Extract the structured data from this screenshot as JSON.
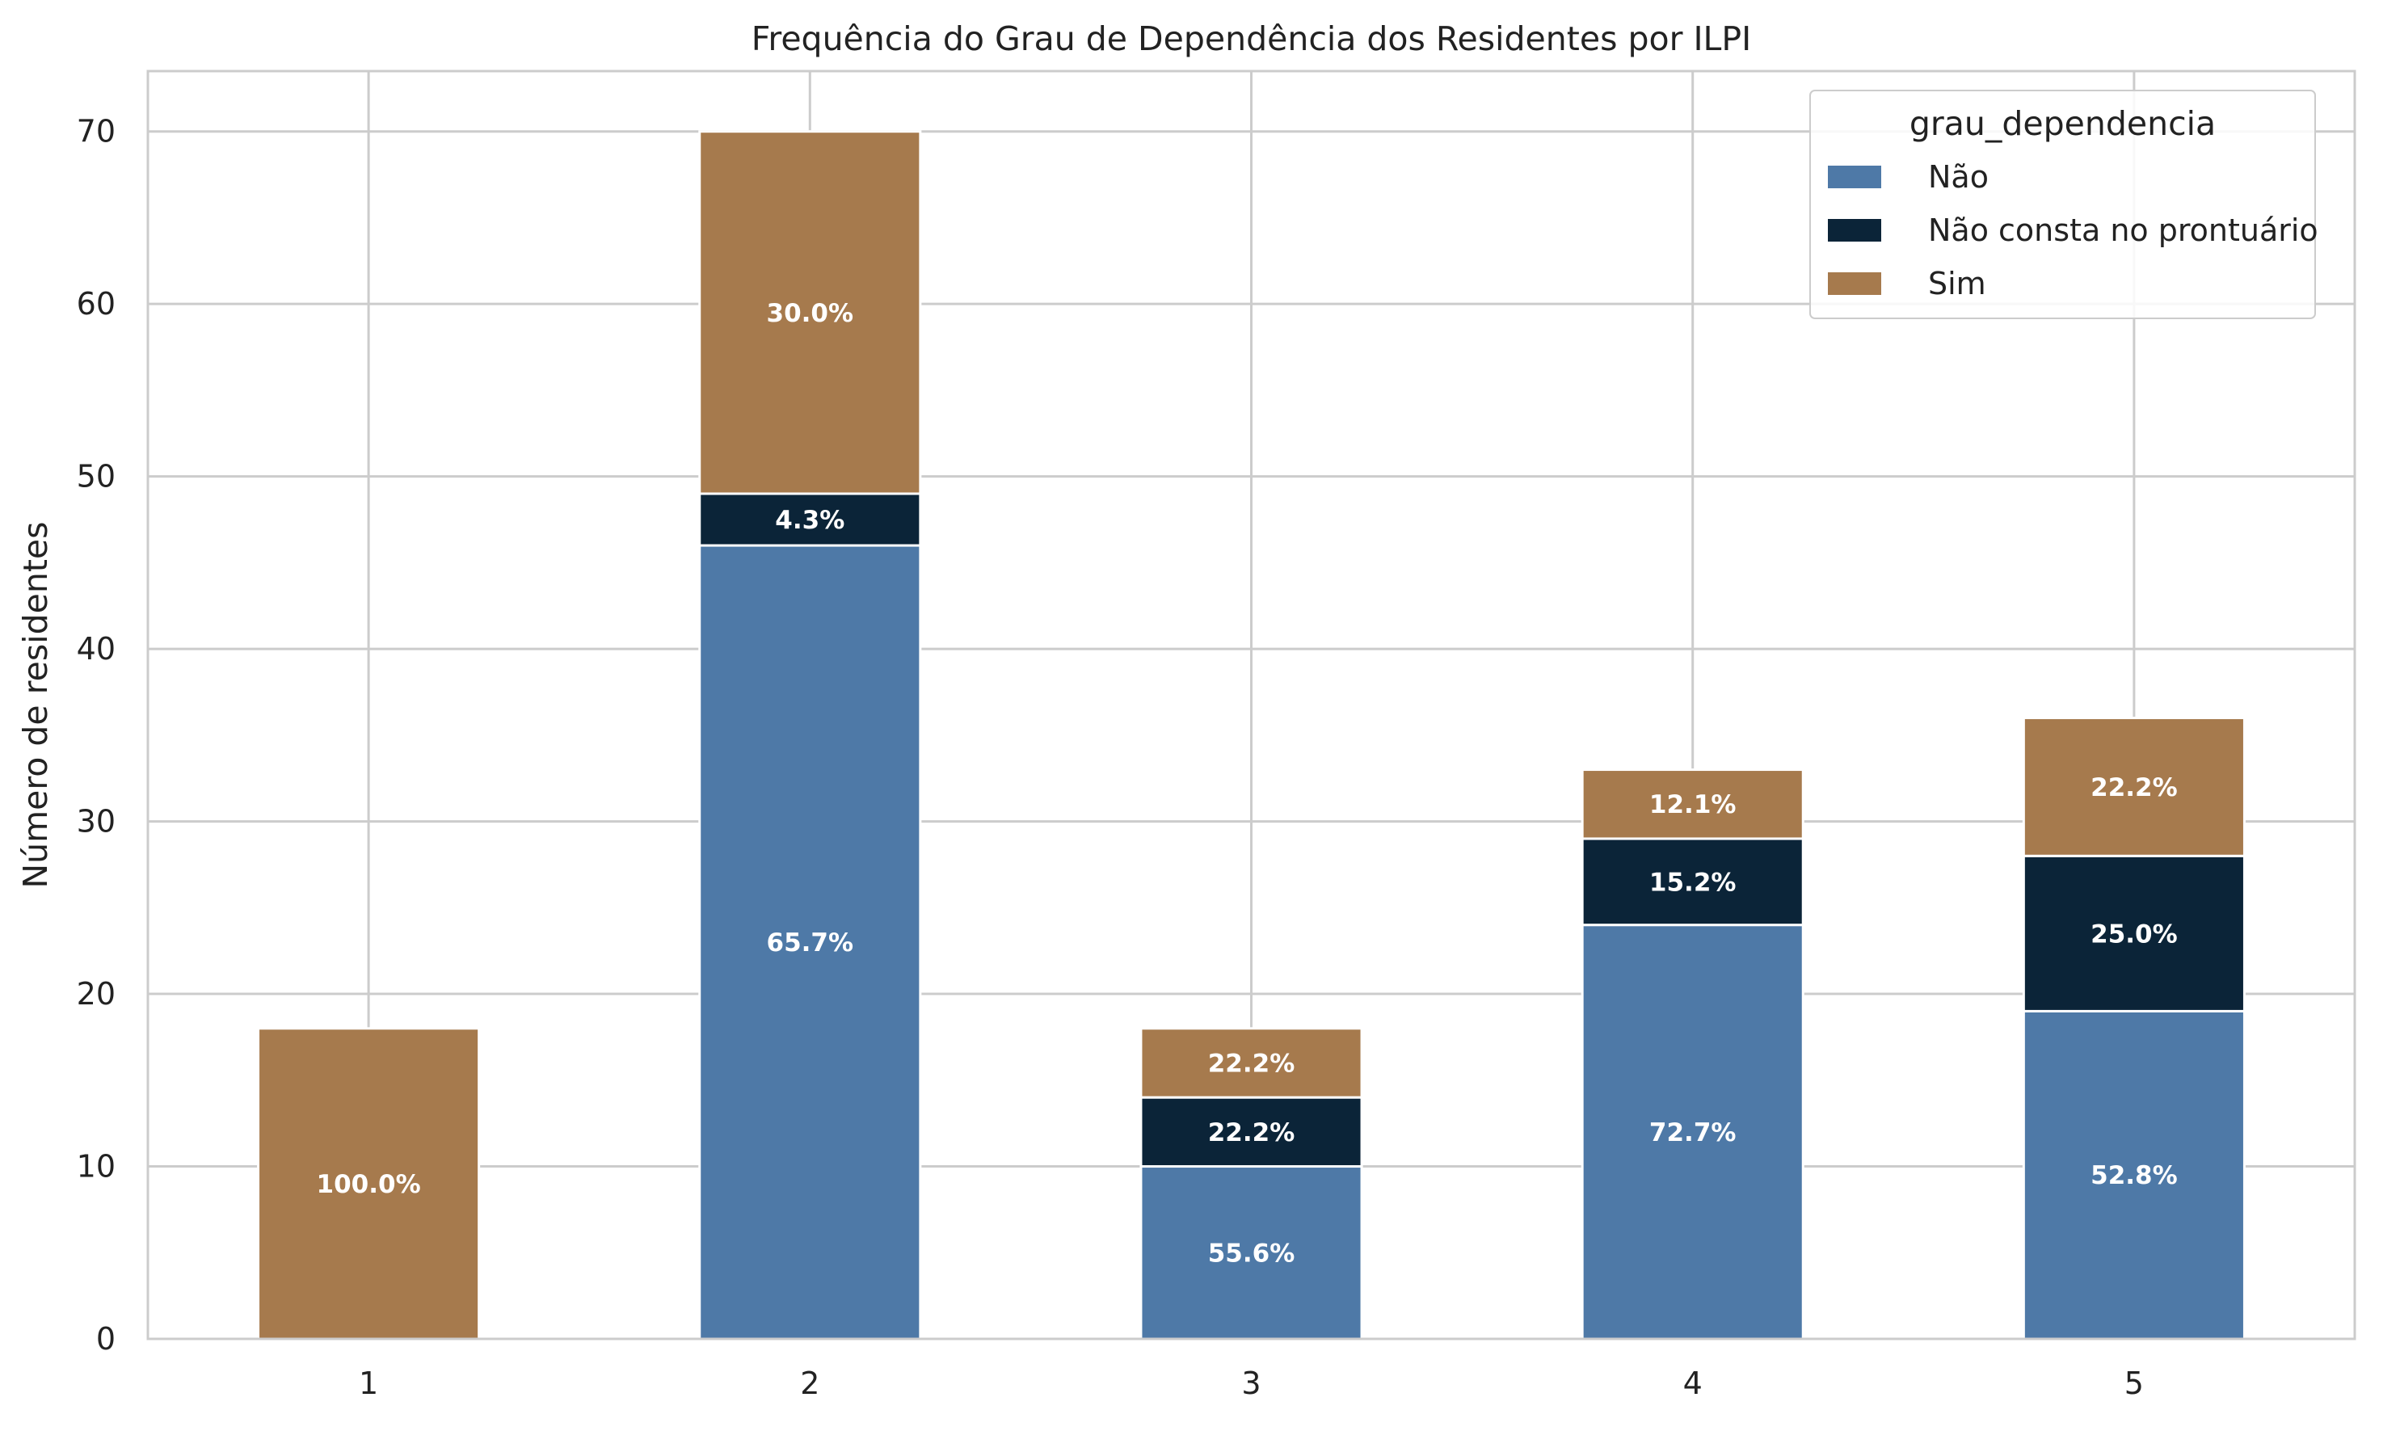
{
  "chart_data": {
    "type": "bar",
    "stacked": true,
    "title": "Frequência do Grau de Dependência dos Residentes por ILPI",
    "xlabel": "",
    "ylabel": "Número de residentes",
    "categories": [
      "1",
      "2",
      "3",
      "4",
      "5"
    ],
    "ylim": [
      0,
      73.5
    ],
    "yticks": [
      0,
      10,
      20,
      30,
      40,
      50,
      60,
      70
    ],
    "grid": true,
    "legend": {
      "title": "grau_dependencia",
      "placement": "top-right"
    },
    "series": [
      {
        "name": "Não",
        "color": "#4e79a7",
        "values": [
          0,
          46,
          10,
          24,
          19
        ],
        "labels": [
          "",
          "65.7%",
          "55.6%",
          "72.7%",
          "52.8%"
        ]
      },
      {
        "name": "Não consta no prontuário",
        "color": "#0b2438",
        "values": [
          0,
          3,
          4,
          5,
          9
        ],
        "labels": [
          "",
          "4.3%",
          "22.2%",
          "15.2%",
          "25.0%"
        ]
      },
      {
        "name": "Sim",
        "color": "#a67a4d",
        "values": [
          18,
          21,
          4,
          4,
          8
        ],
        "labels": [
          "100.0%",
          "30.0%",
          "22.2%",
          "12.1%",
          "22.2%"
        ]
      }
    ]
  }
}
